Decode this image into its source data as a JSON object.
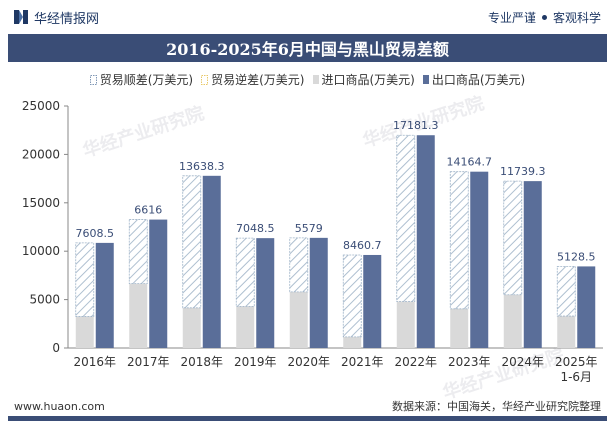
{
  "header": {
    "brand_name": "华经情报网",
    "tagline_left": "专业严谨",
    "tagline_right": "客观科学"
  },
  "title": "2016-2025年6月中国与黑山贸易差额",
  "legend": [
    {
      "label": "贸易顺差(万美元)",
      "color": "#aebfd0",
      "style": "hatch"
    },
    {
      "label": "贸易逆差(万美元)",
      "color": "#e8c96a",
      "style": "hatch"
    },
    {
      "label": "进口商品(万美元)",
      "color": "#d9d9d9",
      "style": "solid"
    },
    {
      "label": "出口商品(万美元)",
      "color": "#5a6e99",
      "style": "solid"
    }
  ],
  "watermark": "华经产业研究院",
  "chart_data": {
    "type": "bar",
    "categories": [
      "2016年",
      "2017年",
      "2018年",
      "2019年",
      "2020年",
      "2021年",
      "2022年",
      "2023年",
      "2024年",
      "2025年1-6月"
    ],
    "series": [
      {
        "name": "贸易顺差(万美元)",
        "values": [
          7608.5,
          6616,
          13638.3,
          7048.5,
          5579,
          8460.7,
          17181.3,
          14164.7,
          11739.3,
          5128.5
        ]
      },
      {
        "name": "贸易逆差(万美元)",
        "values": [
          0,
          0,
          0,
          0,
          0,
          0,
          0,
          0,
          0,
          0
        ]
      },
      {
        "name": "进口商品(万美元)",
        "values": [
          3250,
          6650,
          4150,
          4300,
          5800,
          1150,
          4800,
          4050,
          5500,
          3300
        ]
      },
      {
        "name": "出口商品(万美元)",
        "values": [
          10858.5,
          13266,
          17788.3,
          11348.5,
          11379,
          9610.7,
          21981.3,
          18214.7,
          17239.3,
          8428.5
        ]
      }
    ],
    "data_labels": [
      "7608.5",
      "6616",
      "13638.3",
      "7048.5",
      "5579",
      "8460.7",
      "17181.3",
      "14164.7",
      "11739.3",
      "5128.5"
    ],
    "ylim": [
      0,
      25000
    ],
    "yticks": [
      0,
      5000,
      10000,
      15000,
      20000,
      25000
    ],
    "grid": false,
    "legend_position": "top"
  },
  "footer": {
    "website": "www.huaon.com",
    "source": "数据来源：中国海关，华经产业研究院整理"
  }
}
